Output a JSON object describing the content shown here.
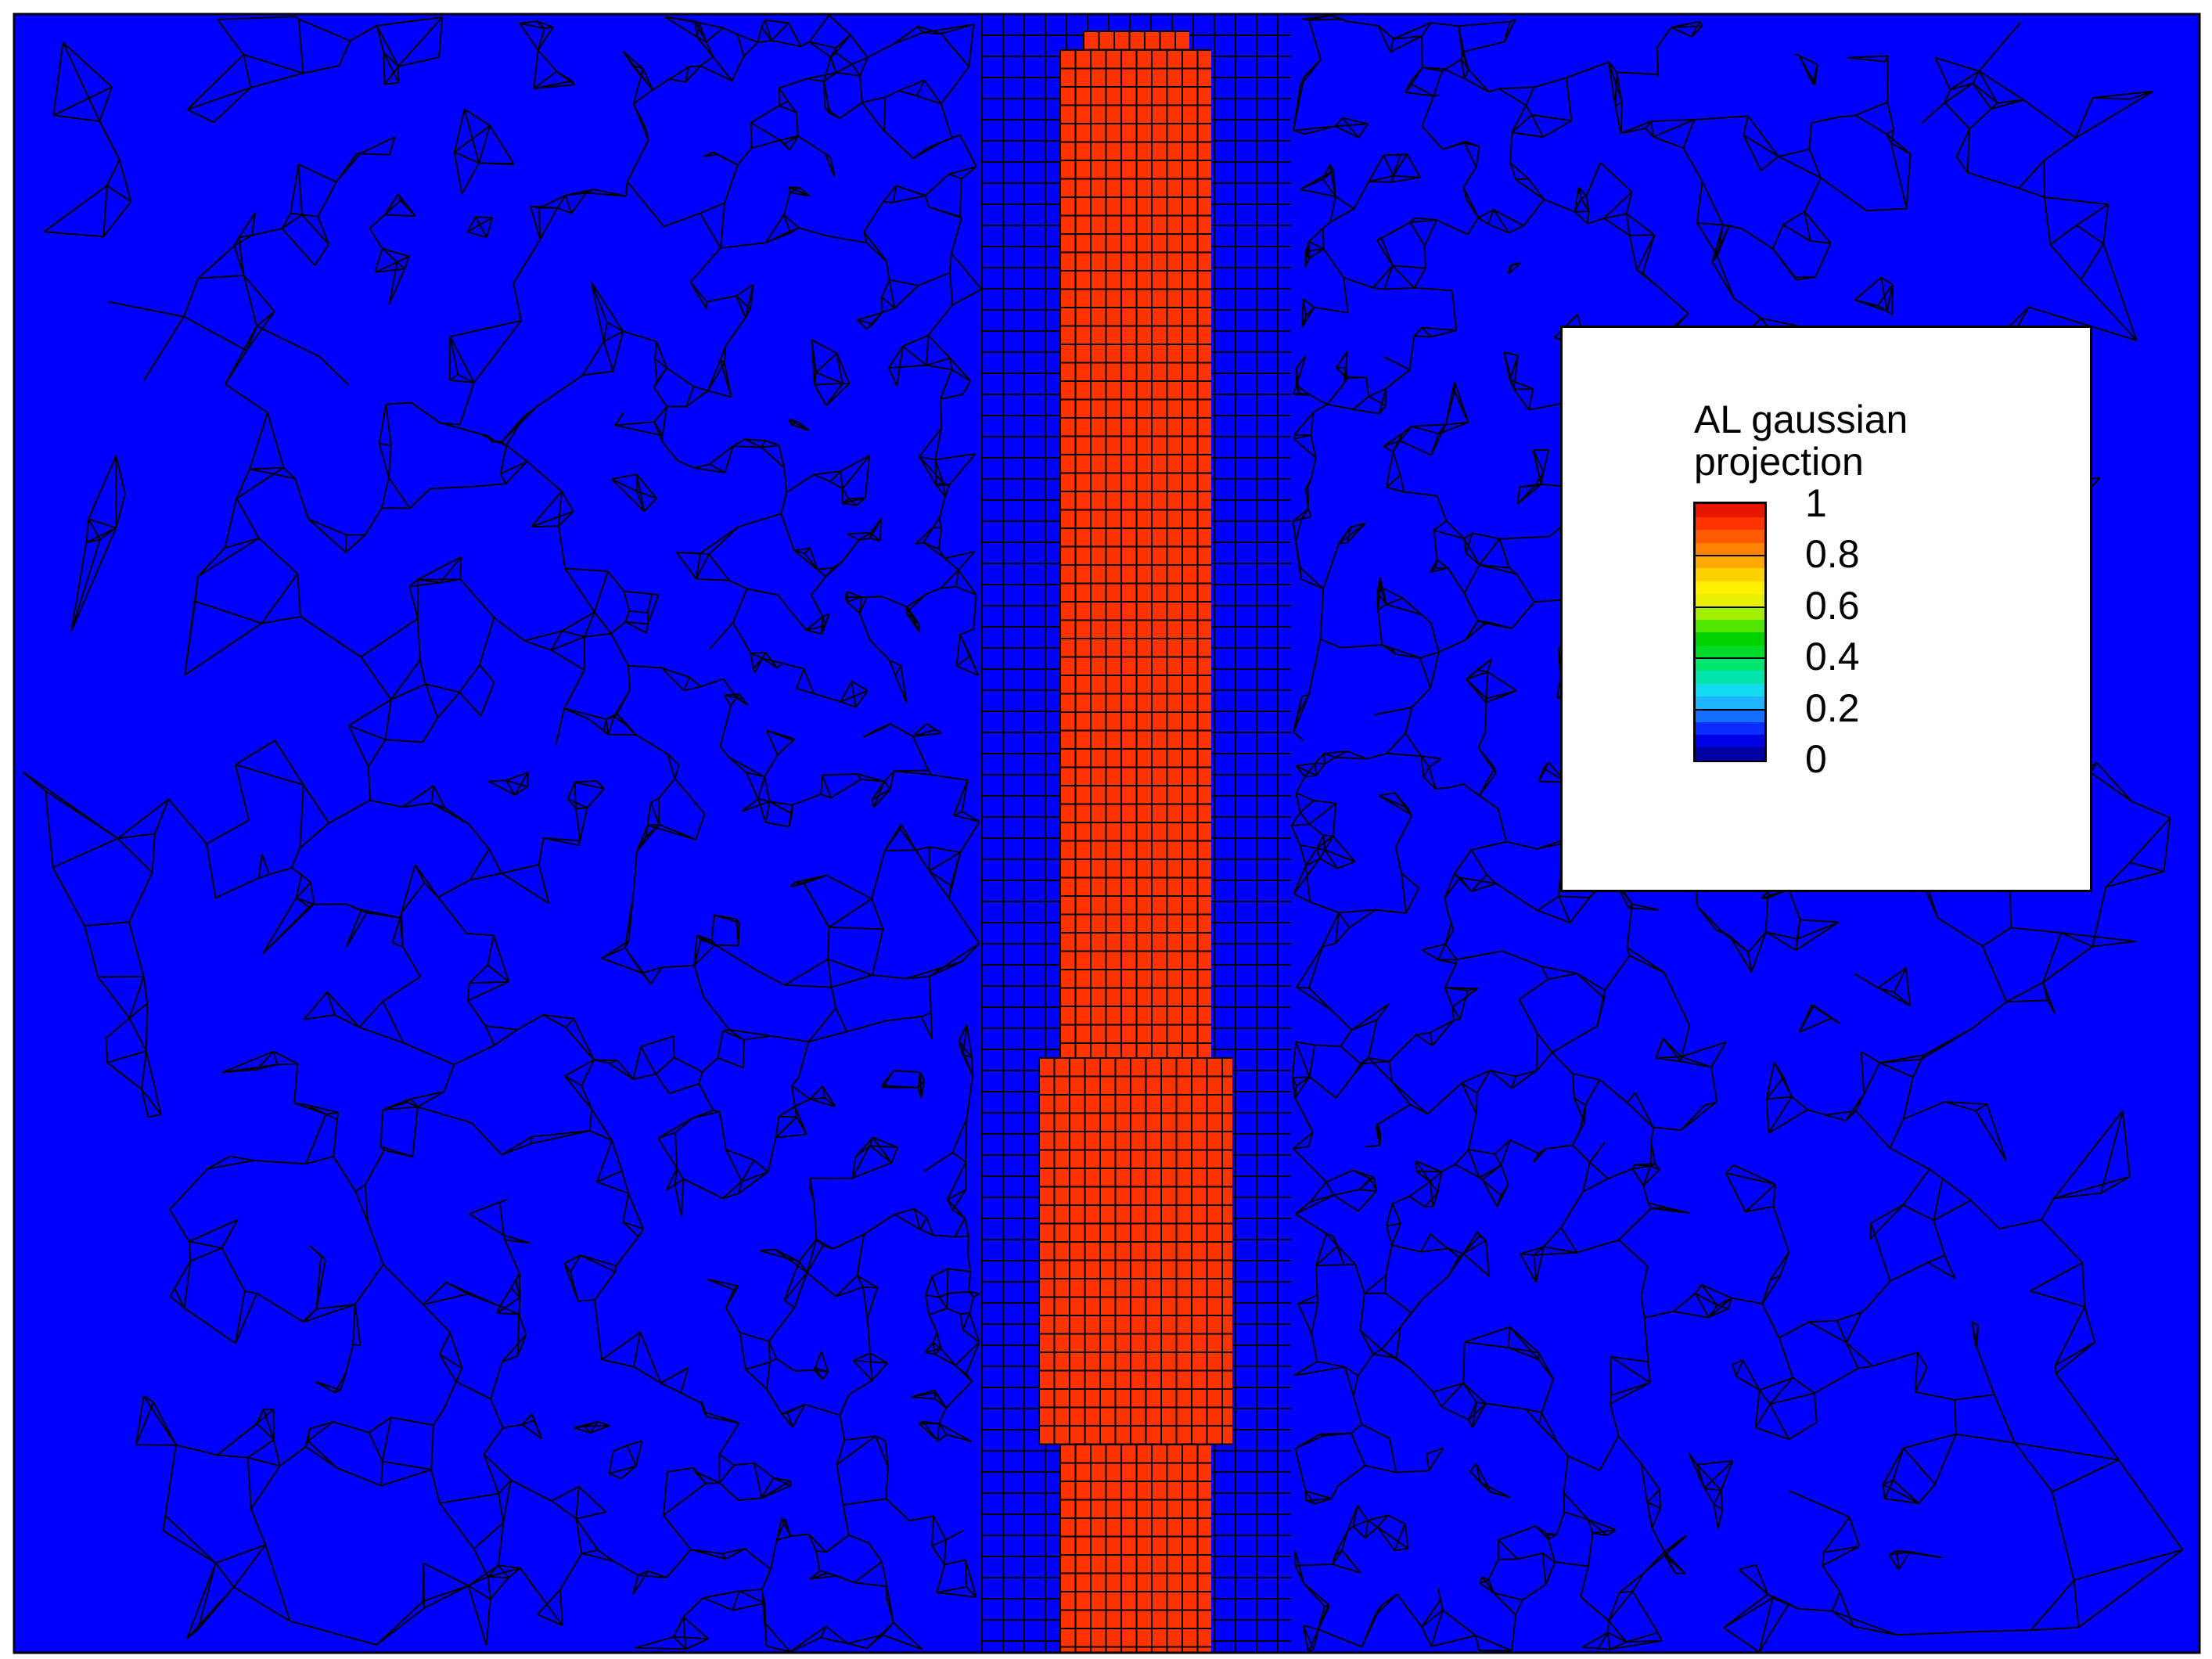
{
  "legend": {
    "title_line1": "AL gaussian",
    "title_line2": "projection",
    "ticks": [
      {
        "value": 1,
        "label": "1"
      },
      {
        "value": 0.8,
        "label": "0.8"
      },
      {
        "value": 0.6,
        "label": "0.6"
      },
      {
        "value": 0.4,
        "label": "0.4"
      },
      {
        "value": 0.2,
        "label": "0.2"
      },
      {
        "value": 0,
        "label": "0"
      }
    ],
    "color_levels": [
      "#0000a0",
      "#0000e6",
      "#0a2dff",
      "#146eff",
      "#1eb4ff",
      "#14dcf0",
      "#00e6aa",
      "#00e66e",
      "#00dc28",
      "#00d200",
      "#50e600",
      "#a0f000",
      "#e6f000",
      "#fff000",
      "#ffd200",
      "#ffaa00",
      "#ff8200",
      "#ff5a00",
      "#ff3200",
      "#e61400"
    ]
  },
  "field": {
    "background_value": 0,
    "background_color": "#0000ff",
    "column_value": 1,
    "column_color": "#ff3300",
    "mesh_color": "#000000"
  }
}
